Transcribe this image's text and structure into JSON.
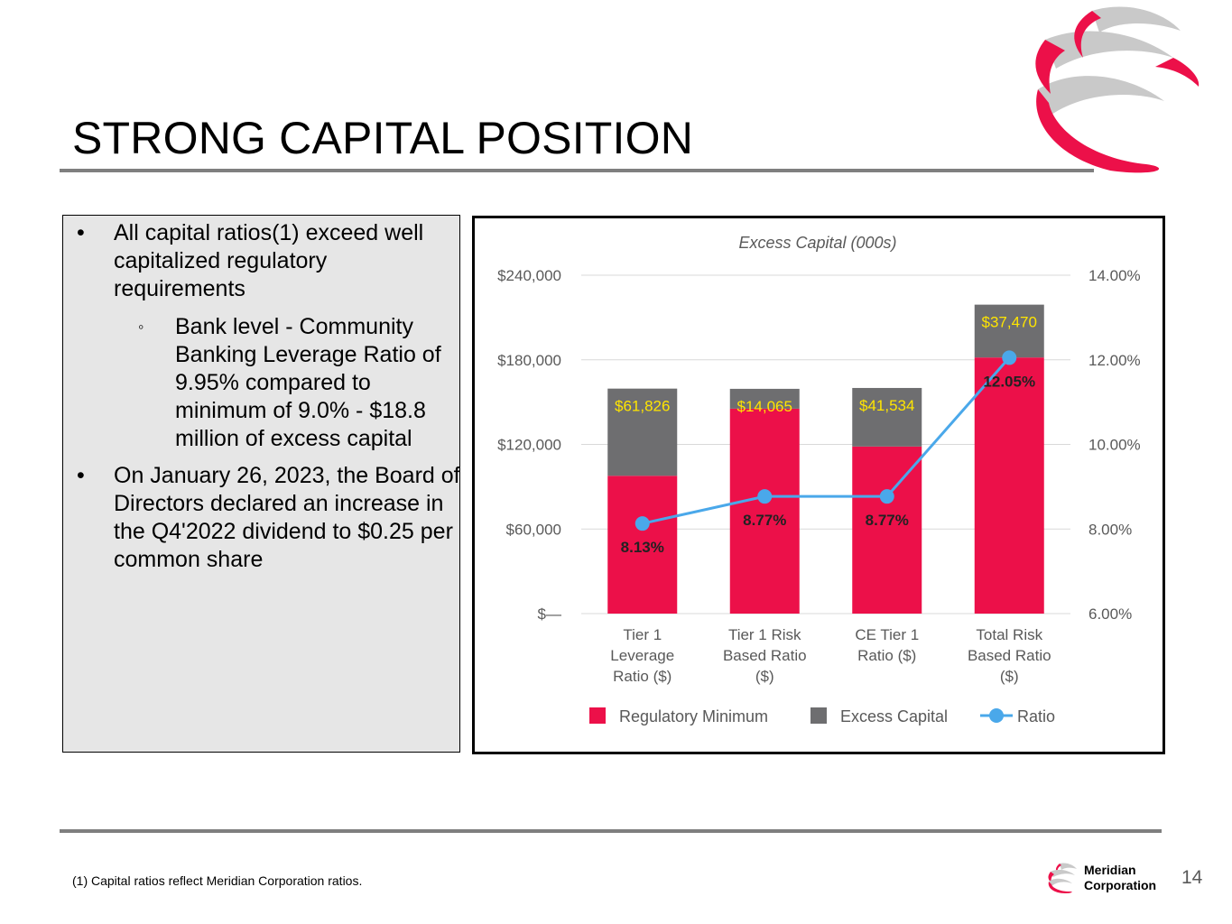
{
  "title": "STRONG CAPITAL POSITION",
  "bullets": [
    {
      "text": "All capital ratios(1) exceed well capitalized regulatory requirements"
    },
    {
      "text": "Bank level - Community Banking Leverage Ratio of 9.95% compared to minimum of 9.0% - $18.8 million of excess capital"
    },
    {
      "text": "On January 26, 2023, the Board of Directors declared an increase in the Q4'2022 dividend to $0.25 per common share"
    }
  ],
  "bullet_marks": {
    "primary": "•",
    "secondary": "◦"
  },
  "footnote": "(1) Capital ratios reflect Meridian Corporation ratios.",
  "company": {
    "line1": "Meridian",
    "line2": "Corporation"
  },
  "page_number": "14",
  "logo_icon": "meridian-swirl-logo",
  "colors": {
    "brand_red": "#ec1049",
    "excess_gray": "#6e6e70",
    "ratio_blue": "#4aa8ea",
    "label_yellow": "#ffe500",
    "rule_gray": "#7f7f7f",
    "panel_gray": "#e6e6e6"
  },
  "chart_data": {
    "type": "bar",
    "stacked": true,
    "title": "Excess Capital (000s)",
    "categories": [
      "Tier 1 Leverage Ratio ($)",
      "Tier 1 Risk Based Ratio ($)",
      "CE Tier 1 Ratio ($)",
      "Total Risk Based Ratio ($)"
    ],
    "category_label_lines": [
      [
        "Tier 1",
        "Leverage",
        "Ratio ($)"
      ],
      [
        "Tier 1 Risk",
        "Based Ratio",
        "($)"
      ],
      [
        "CE Tier 1",
        "Ratio ($)"
      ],
      [
        "Total Risk",
        "Based Ratio",
        "($)"
      ]
    ],
    "series": [
      {
        "name": "Regulatory Minimum",
        "type": "bar",
        "axis": "left",
        "values": [
          97750,
          145350,
          118500,
          181650
        ]
      },
      {
        "name": "Excess Capital",
        "type": "bar",
        "axis": "left",
        "values": [
          61826,
          14065,
          41534,
          37470
        ],
        "labels": [
          "$61,826",
          "$14,065",
          "$41,534",
          "$37,470"
        ]
      },
      {
        "name": "Ratio",
        "type": "line",
        "axis": "right",
        "values": [
          8.13,
          8.77,
          8.77,
          12.05
        ],
        "labels": [
          "8.13%",
          "8.77%",
          "8.77%",
          "12.05%"
        ]
      }
    ],
    "left_axis": {
      "min": 0,
      "max": 240000,
      "ticks": [
        0,
        60000,
        120000,
        180000,
        240000
      ],
      "tick_labels": [
        "$—",
        "$60,000",
        "$120,000",
        "$180,000",
        "$240,000"
      ]
    },
    "right_axis": {
      "min": 6,
      "max": 14,
      "ticks": [
        6,
        8,
        10,
        12,
        14
      ],
      "tick_labels": [
        "6.00%",
        "8.00%",
        "10.00%",
        "12.00%",
        "14.00%"
      ]
    },
    "legend": {
      "items": [
        "Regulatory Minimum",
        "Excess Capital",
        "Ratio"
      ],
      "position": "bottom"
    },
    "grid": true
  }
}
